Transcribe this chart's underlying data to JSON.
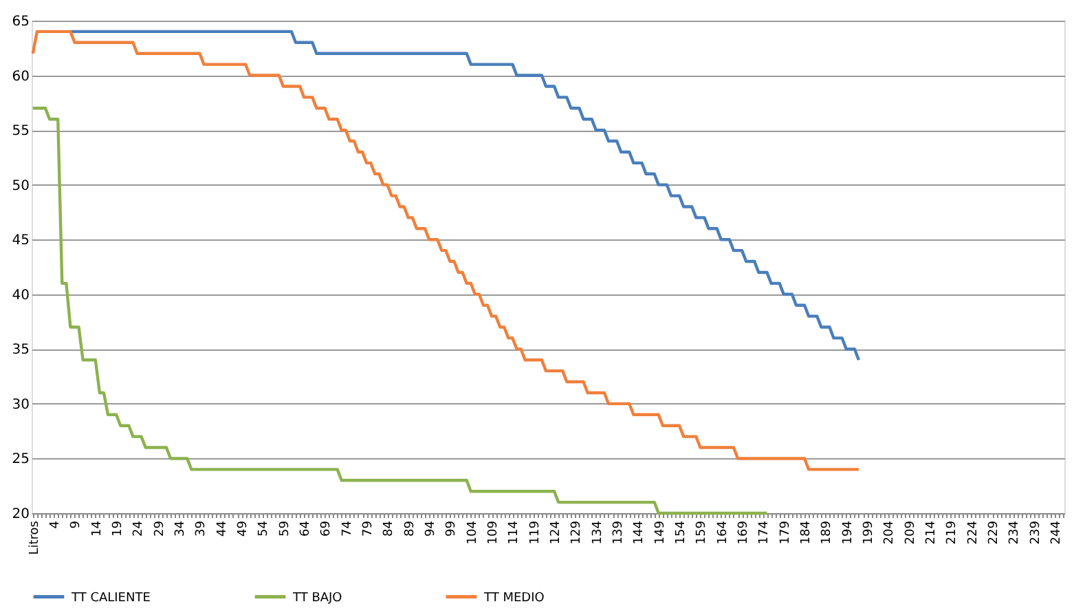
{
  "chart_data": {
    "type": "line",
    "categories": [
      "Litros",
      null,
      null,
      null,
      null,
      "4",
      null,
      null,
      null,
      null,
      "9",
      null,
      null,
      null,
      null,
      "14",
      null,
      null,
      null,
      null,
      "19",
      null,
      null,
      null,
      null,
      "24",
      null,
      null,
      null,
      null,
      "29",
      null,
      null,
      null,
      null,
      "34",
      null,
      null,
      null,
      null,
      "39",
      null,
      null,
      null,
      null,
      "44",
      null,
      null,
      null,
      null,
      "49",
      null,
      null,
      null,
      null,
      "54",
      null,
      null,
      null,
      null,
      "59",
      null,
      null,
      null,
      null,
      "64",
      null,
      null,
      null,
      null,
      "69",
      null,
      null,
      null,
      null,
      "74",
      null,
      null,
      null,
      null,
      "79",
      null,
      null,
      null,
      null,
      "84",
      null,
      null,
      null,
      null,
      "89",
      null,
      null,
      null,
      null,
      "94",
      null,
      null,
      null,
      null,
      "99",
      null,
      null,
      null,
      null,
      "104",
      null,
      null,
      null,
      null,
      "109",
      null,
      null,
      null,
      null,
      "114",
      null,
      null,
      null,
      null,
      "119",
      null,
      null,
      null,
      null,
      "124",
      null,
      null,
      null,
      null,
      "129",
      null,
      null,
      null,
      null,
      "134",
      null,
      null,
      null,
      null,
      "139",
      null,
      null,
      null,
      null,
      "144",
      null,
      null,
      null,
      null,
      "149",
      null,
      null,
      null,
      null,
      "154",
      null,
      null,
      null,
      null,
      "159",
      null,
      null,
      null,
      null,
      "164",
      null,
      null,
      null,
      null,
      "169",
      null,
      null,
      null,
      null,
      "174",
      null,
      null,
      null,
      null,
      "179",
      null,
      null,
      null,
      null,
      "184",
      null,
      null,
      null,
      null,
      "189",
      null,
      null,
      null,
      null,
      "194",
      null,
      null,
      null,
      null,
      "199",
      null,
      null,
      null,
      null,
      "204",
      null,
      null,
      null,
      null,
      "209",
      null,
      null,
      null,
      null,
      "214",
      null,
      null,
      null,
      null,
      "219",
      null,
      null,
      null,
      null,
      "224",
      null,
      null,
      null,
      null,
      "229",
      null,
      null,
      null,
      null,
      "234",
      null,
      null,
      null,
      null,
      "239",
      null,
      null,
      null,
      null,
      "244",
      null,
      null
    ],
    "series": [
      {
        "name": "TT CALIENTE",
        "color": "#4a7ebb",
        "values": [
          null,
          null,
          null,
          null,
          null,
          null,
          null,
          null,
          null,
          64,
          64,
          64,
          64,
          64,
          64,
          64,
          64,
          64,
          64,
          64,
          64,
          64,
          64,
          64,
          64,
          64,
          64,
          64,
          64,
          64,
          64,
          64,
          64,
          64,
          64,
          64,
          64,
          64,
          64,
          64,
          64,
          64,
          64,
          64,
          64,
          64,
          64,
          64,
          64,
          64,
          64,
          64,
          64,
          64,
          64,
          64,
          64,
          64,
          64,
          64,
          64,
          64,
          64,
          63,
          63,
          63,
          63,
          63,
          62,
          62,
          62,
          62,
          62,
          62,
          62,
          62,
          62,
          62,
          62,
          62,
          62,
          62,
          62,
          62,
          62,
          62,
          62,
          62,
          62,
          62,
          62,
          62,
          62,
          62,
          62,
          62,
          62,
          62,
          62,
          62,
          62,
          62,
          62,
          62,
          62,
          61,
          61,
          61,
          61,
          61,
          61,
          61,
          61,
          61,
          61,
          61,
          60,
          60,
          60,
          60,
          60,
          60,
          60,
          59,
          59,
          59,
          58,
          58,
          58,
          57,
          57,
          57,
          56,
          56,
          56,
          55,
          55,
          55,
          54,
          54,
          54,
          53,
          53,
          53,
          52,
          52,
          52,
          51,
          51,
          51,
          50,
          50,
          50,
          49,
          49,
          49,
          48,
          48,
          48,
          47,
          47,
          47,
          46,
          46,
          46,
          45,
          45,
          45,
          44,
          44,
          44,
          43,
          43,
          43,
          42,
          42,
          42,
          41,
          41,
          41,
          40,
          40,
          40,
          39,
          39,
          39,
          38,
          38,
          38,
          37,
          37,
          37,
          36,
          36,
          36,
          35,
          35,
          35,
          34,
          null,
          null,
          null,
          null,
          null,
          null,
          null,
          null,
          null,
          null,
          null,
          null,
          null,
          null,
          null,
          null,
          null,
          null,
          null,
          null,
          null,
          null,
          null,
          null,
          null,
          null,
          null,
          null,
          null,
          null,
          null,
          null,
          null,
          null,
          null,
          null,
          null,
          null,
          null,
          null,
          null,
          null,
          null,
          null,
          null,
          null,
          null,
          null,
          null
        ]
      },
      {
        "name": "TT BAJO",
        "color": "#8cb24e",
        "values": [
          57,
          57,
          57,
          57,
          56,
          56,
          56,
          41,
          41,
          37,
          37,
          37,
          34,
          34,
          34,
          34,
          31,
          31,
          29,
          29,
          29,
          28,
          28,
          28,
          27,
          27,
          27,
          26,
          26,
          26,
          26,
          26,
          26,
          25,
          25,
          25,
          25,
          25,
          24,
          24,
          24,
          24,
          24,
          24,
          24,
          24,
          24,
          24,
          24,
          24,
          24,
          24,
          24,
          24,
          24,
          24,
          24,
          24,
          24,
          24,
          24,
          24,
          24,
          24,
          24,
          24,
          24,
          24,
          24,
          24,
          24,
          24,
          24,
          24,
          23,
          23,
          23,
          23,
          23,
          23,
          23,
          23,
          23,
          23,
          23,
          23,
          23,
          23,
          23,
          23,
          23,
          23,
          23,
          23,
          23,
          23,
          23,
          23,
          23,
          23,
          23,
          23,
          23,
          23,
          23,
          22,
          22,
          22,
          22,
          22,
          22,
          22,
          22,
          22,
          22,
          22,
          22,
          22,
          22,
          22,
          22,
          22,
          22,
          22,
          22,
          22,
          21,
          21,
          21,
          21,
          21,
          21,
          21,
          21,
          21,
          21,
          21,
          21,
          21,
          21,
          21,
          21,
          21,
          21,
          21,
          21,
          21,
          21,
          21,
          21,
          20,
          20,
          20,
          20,
          20,
          20,
          20,
          20,
          20,
          20,
          20,
          20,
          20,
          20,
          20,
          20,
          20,
          20,
          20,
          20,
          20,
          20,
          20,
          20,
          20,
          20,
          20,
          null,
          null,
          null,
          null,
          null,
          null,
          null,
          null,
          null,
          null,
          null,
          null,
          null,
          null,
          null,
          null,
          null,
          null,
          null,
          null,
          null,
          null,
          null,
          null,
          null,
          null,
          null,
          null,
          null,
          null,
          null,
          null,
          null,
          null,
          null,
          null,
          null,
          null,
          null,
          null,
          null,
          null,
          null,
          null,
          null,
          null,
          null,
          null,
          null,
          null,
          null,
          null,
          null,
          null,
          null,
          null,
          null,
          null,
          null,
          null,
          null,
          null,
          null,
          null,
          null,
          null,
          null,
          null,
          null,
          null,
          null
        ]
      },
      {
        "name": "TT MEDIO",
        "color": "#f0803c",
        "values": [
          62,
          64,
          64,
          64,
          64,
          64,
          64,
          64,
          64,
          64,
          63,
          63,
          63,
          63,
          63,
          63,
          63,
          63,
          63,
          63,
          63,
          63,
          63,
          63,
          63,
          62,
          62,
          62,
          62,
          62,
          62,
          62,
          62,
          62,
          62,
          62,
          62,
          62,
          62,
          62,
          62,
          61,
          61,
          61,
          61,
          61,
          61,
          61,
          61,
          61,
          61,
          61,
          60,
          60,
          60,
          60,
          60,
          60,
          60,
          60,
          59,
          59,
          59,
          59,
          59,
          58,
          58,
          58,
          57,
          57,
          57,
          56,
          56,
          56,
          55,
          55,
          54,
          54,
          53,
          53,
          52,
          52,
          51,
          51,
          50,
          50,
          49,
          49,
          48,
          48,
          47,
          47,
          46,
          46,
          46,
          45,
          45,
          45,
          44,
          44,
          43,
          43,
          42,
          42,
          41,
          41,
          40,
          40,
          39,
          39,
          38,
          38,
          37,
          37,
          36,
          36,
          35,
          35,
          34,
          34,
          34,
          34,
          34,
          33,
          33,
          33,
          33,
          33,
          32,
          32,
          32,
          32,
          32,
          31,
          31,
          31,
          31,
          31,
          30,
          30,
          30,
          30,
          30,
          30,
          29,
          29,
          29,
          29,
          29,
          29,
          29,
          28,
          28,
          28,
          28,
          28,
          27,
          27,
          27,
          27,
          26,
          26,
          26,
          26,
          26,
          26,
          26,
          26,
          26,
          25,
          25,
          25,
          25,
          25,
          25,
          25,
          25,
          25,
          25,
          25,
          25,
          25,
          25,
          25,
          25,
          25,
          24,
          24,
          24,
          24,
          24,
          24,
          24,
          24,
          24,
          24,
          24,
          24,
          24,
          null,
          null,
          null,
          null,
          null,
          null,
          null,
          null,
          null,
          null,
          null,
          null,
          null,
          null,
          null,
          null,
          null,
          null,
          null,
          null,
          null,
          null,
          null,
          null,
          null,
          null,
          null,
          null,
          null,
          null,
          null,
          null,
          null,
          null,
          null,
          null,
          null,
          null,
          null,
          null,
          null,
          null,
          null,
          null,
          null,
          null,
          null,
          null,
          null
        ]
      }
    ],
    "ylim": [
      20,
      65
    ],
    "yticks": [
      20,
      25,
      30,
      35,
      40,
      45,
      50,
      55,
      60,
      65
    ],
    "grid": "y",
    "legend": "bottom",
    "marker": "none",
    "line_style": "solid"
  }
}
